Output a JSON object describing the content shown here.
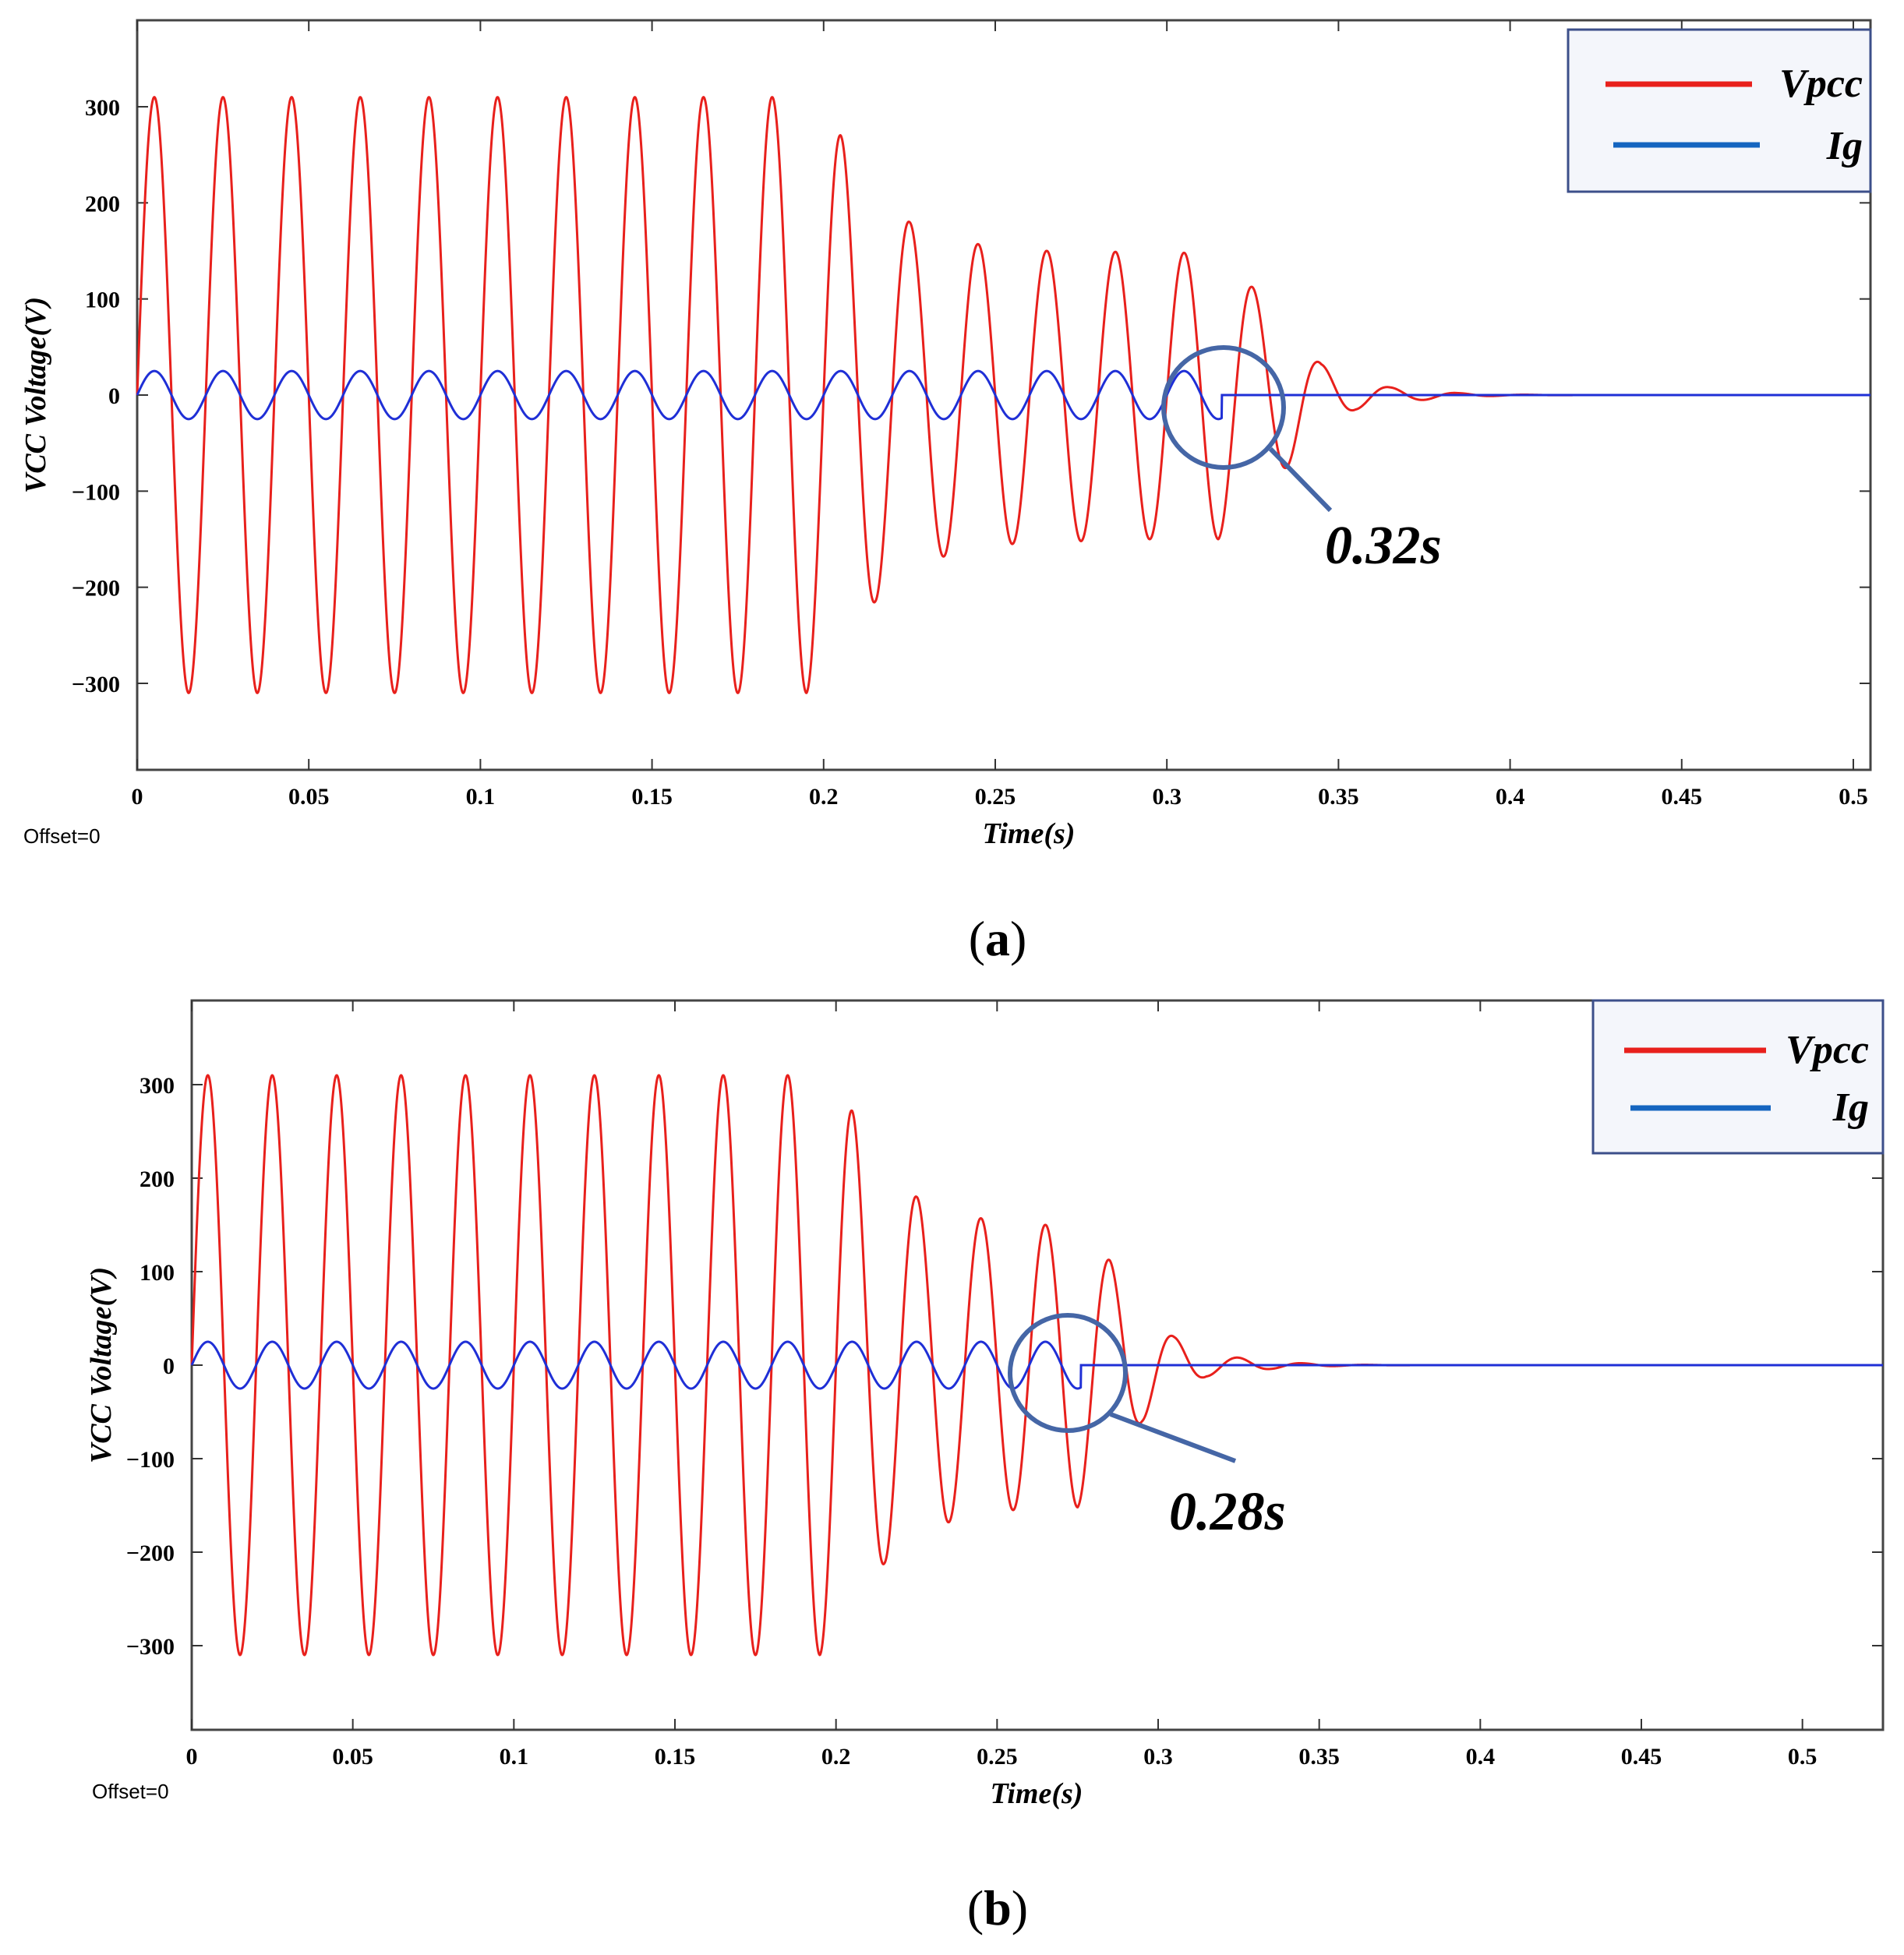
{
  "colors": {
    "vpcc": "#e8201c",
    "ig": "#1f2fd6",
    "legend_ig": "#1565c0",
    "annotation": "#4566a6",
    "legend_bg": "#f4f6fb"
  },
  "chart_data": [
    {
      "type": "line",
      "panel": "a",
      "caption_label": "a",
      "xlabel": "Time(s)",
      "ylabel": "VCC Voltage(V)",
      "xlim": [
        0,
        0.505
      ],
      "ylim": [
        -390,
        390
      ],
      "x_ticks": [
        "0",
        "0.05",
        "0.1",
        "0.15",
        "0.2",
        "0.25",
        "0.3",
        "0.35",
        "0.4",
        "0.45",
        "0.5"
      ],
      "y_ticks": [
        "300",
        "200",
        "100",
        "0",
        "−100",
        "−200",
        "−300"
      ],
      "y_tick_values": [
        300,
        200,
        100,
        0,
        -100,
        -200,
        -300
      ],
      "offset_label": "Offset=0",
      "legend": [
        "Vpcc",
        "Ig"
      ],
      "annotation": {
        "label": "0.32s",
        "t": 0.32
      },
      "series": [
        {
          "name": "Vpcc",
          "frequency_hz": 50,
          "sample_peaks": [
            [
              0.005,
              310
            ],
            [
              0.015,
              -310
            ],
            [
              0.025,
              310
            ],
            [
              0.035,
              -310
            ],
            [
              0.045,
              310
            ],
            [
              0.055,
              -310
            ],
            [
              0.065,
              310
            ],
            [
              0.075,
              -310
            ],
            [
              0.085,
              310
            ],
            [
              0.095,
              -310
            ],
            [
              0.105,
              310
            ],
            [
              0.115,
              -310
            ],
            [
              0.125,
              310
            ],
            [
              0.135,
              -310
            ],
            [
              0.145,
              310
            ],
            [
              0.155,
              -310
            ],
            [
              0.165,
              310
            ],
            [
              0.175,
              -310
            ],
            [
              0.185,
              310
            ],
            [
              0.195,
              -310
            ],
            [
              0.205,
              270
            ],
            [
              0.215,
              -215
            ],
            [
              0.225,
              180
            ],
            [
              0.235,
              -168
            ],
            [
              0.245,
              157
            ],
            [
              0.255,
              -155
            ],
            [
              0.265,
              150
            ],
            [
              0.275,
              -152
            ],
            [
              0.285,
              149
            ],
            [
              0.295,
              -150
            ],
            [
              0.305,
              148
            ],
            [
              0.315,
              -150
            ],
            [
              0.325,
              112
            ],
            [
              0.335,
              -75
            ],
            [
              0.345,
              32
            ],
            [
              0.355,
              -15
            ],
            [
              0.365,
              8
            ],
            [
              0.375,
              -5
            ],
            [
              0.385,
              2
            ],
            [
              0.395,
              -1
            ]
          ]
        },
        {
          "name": "Ig",
          "frequency_hz": 50,
          "amplitude": 25,
          "off_at": 0.316
        }
      ]
    },
    {
      "type": "line",
      "panel": "b",
      "caption_label": "b",
      "xlabel": "Time(s)",
      "ylabel": "VCC Voltage(V)",
      "xlim": [
        0,
        0.525
      ],
      "ylim": [
        -390,
        390
      ],
      "x_ticks": [
        "0",
        "0.05",
        "0.1",
        "0.15",
        "0.2",
        "0.25",
        "0.3",
        "0.35",
        "0.4",
        "0.45",
        "0.5"
      ],
      "y_ticks": [
        "300",
        "200",
        "100",
        "0",
        "−100",
        "−200",
        "−300"
      ],
      "y_tick_values": [
        300,
        200,
        100,
        0,
        -100,
        -200,
        -300
      ],
      "offset_label": "Offset=0",
      "legend": [
        "Vpcc",
        "Ig"
      ],
      "annotation": {
        "label": "0.28s",
        "t": 0.275
      },
      "series": [
        {
          "name": "Vpcc",
          "frequency_hz": 50,
          "sample_peaks": [
            [
              0.005,
              310
            ],
            [
              0.015,
              -310
            ],
            [
              0.025,
              310
            ],
            [
              0.035,
              -310
            ],
            [
              0.045,
              310
            ],
            [
              0.055,
              -310
            ],
            [
              0.065,
              310
            ],
            [
              0.075,
              -310
            ],
            [
              0.085,
              310
            ],
            [
              0.095,
              -310
            ],
            [
              0.105,
              310
            ],
            [
              0.115,
              -310
            ],
            [
              0.125,
              310
            ],
            [
              0.135,
              -310
            ],
            [
              0.145,
              310
            ],
            [
              0.155,
              -310
            ],
            [
              0.165,
              310
            ],
            [
              0.175,
              -310
            ],
            [
              0.185,
              310
            ],
            [
              0.195,
              -310
            ],
            [
              0.205,
              272
            ],
            [
              0.215,
              -212
            ],
            [
              0.225,
              180
            ],
            [
              0.235,
              -168
            ],
            [
              0.245,
              157
            ],
            [
              0.255,
              -155
            ],
            [
              0.265,
              150
            ],
            [
              0.275,
              -152
            ],
            [
              0.285,
              112
            ],
            [
              0.295,
              -60
            ],
            [
              0.305,
              30
            ],
            [
              0.315,
              -12
            ],
            [
              0.325,
              8
            ],
            [
              0.335,
              -4
            ],
            [
              0.345,
              2
            ],
            [
              0.355,
              -1
            ]
          ]
        },
        {
          "name": "Ig",
          "frequency_hz": 50,
          "amplitude": 25,
          "off_at": 0.276
        }
      ]
    }
  ]
}
